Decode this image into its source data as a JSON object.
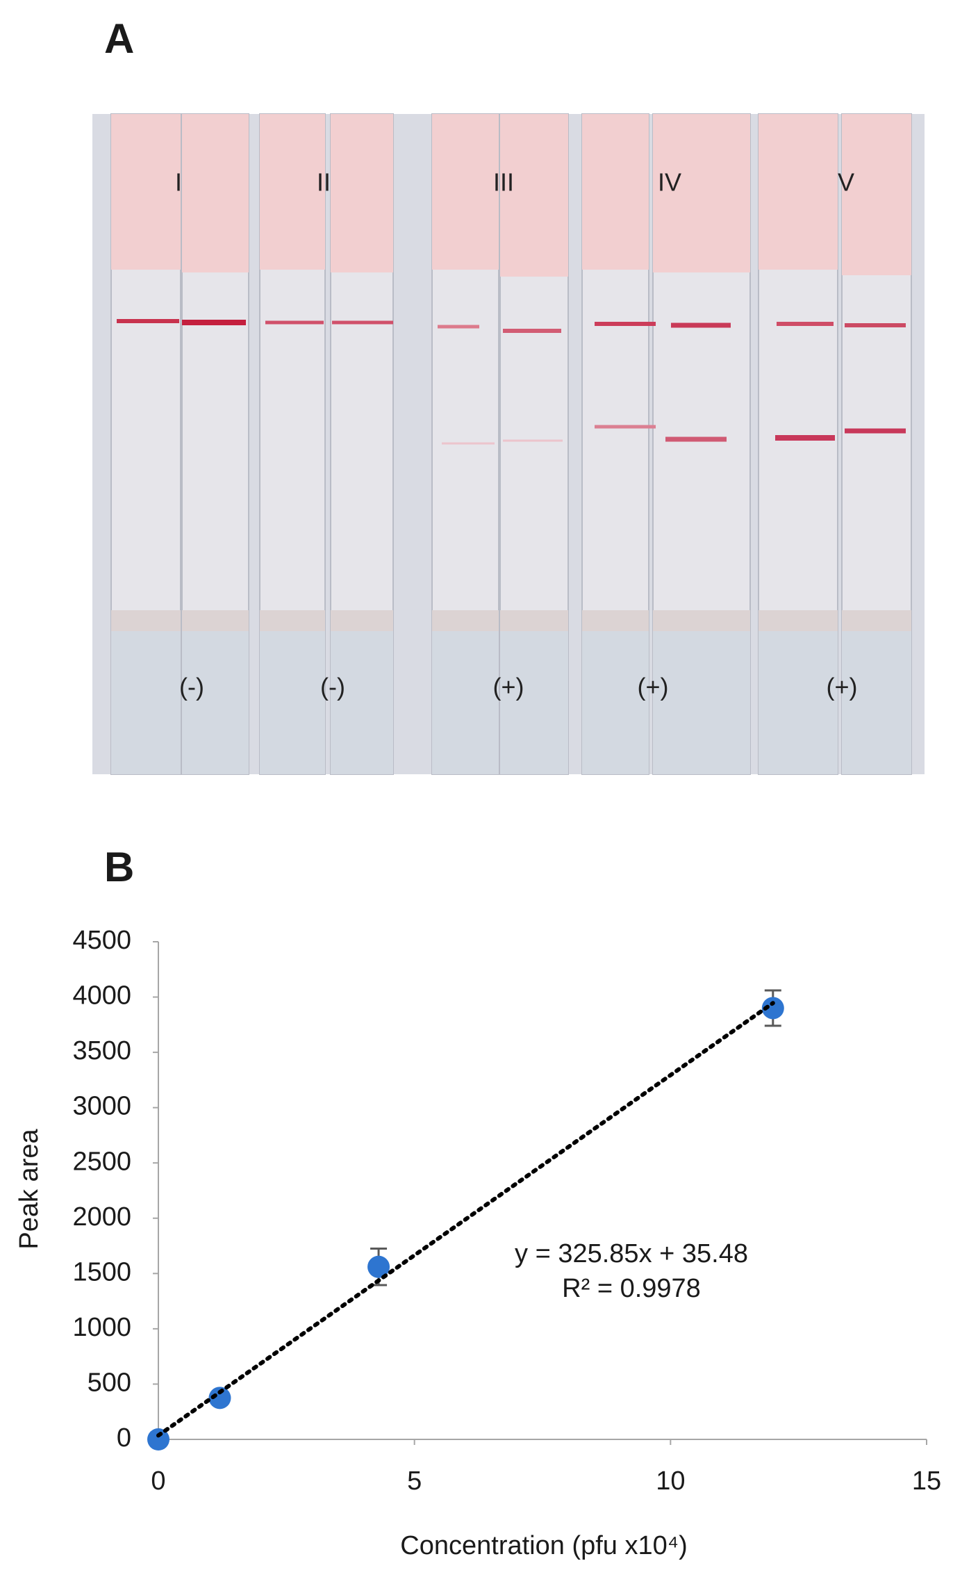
{
  "panel_a": {
    "label": "A",
    "strip_labels": [
      "I",
      "II",
      "III",
      "IV",
      "V"
    ],
    "results": [
      "(-)",
      "(-)",
      "(+)",
      "(+)",
      "(+)"
    ]
  },
  "chart_data": {
    "type": "scatter",
    "panel_label": "B",
    "x_label": "Concentration  (pfu x10⁴)",
    "y_label": "Peak area",
    "x": [
      0,
      1.2,
      4.3,
      12
    ],
    "values": [
      0,
      375,
      1560,
      3900
    ],
    "errors": [
      0,
      30,
      165,
      160
    ],
    "color": "#2e75d0",
    "xlim": [
      0,
      15
    ],
    "ylim": [
      0,
      4500
    ],
    "xticks": [
      0,
      5,
      10,
      15
    ],
    "yticks": [
      0,
      500,
      1000,
      1500,
      2000,
      2500,
      3000,
      3500,
      4000,
      4500
    ],
    "trendline": {
      "slope": 325.85,
      "intercept": 35.48,
      "equation": "y = 325.85x + 35.48",
      "r_squared": "R² = 0.9978"
    }
  }
}
